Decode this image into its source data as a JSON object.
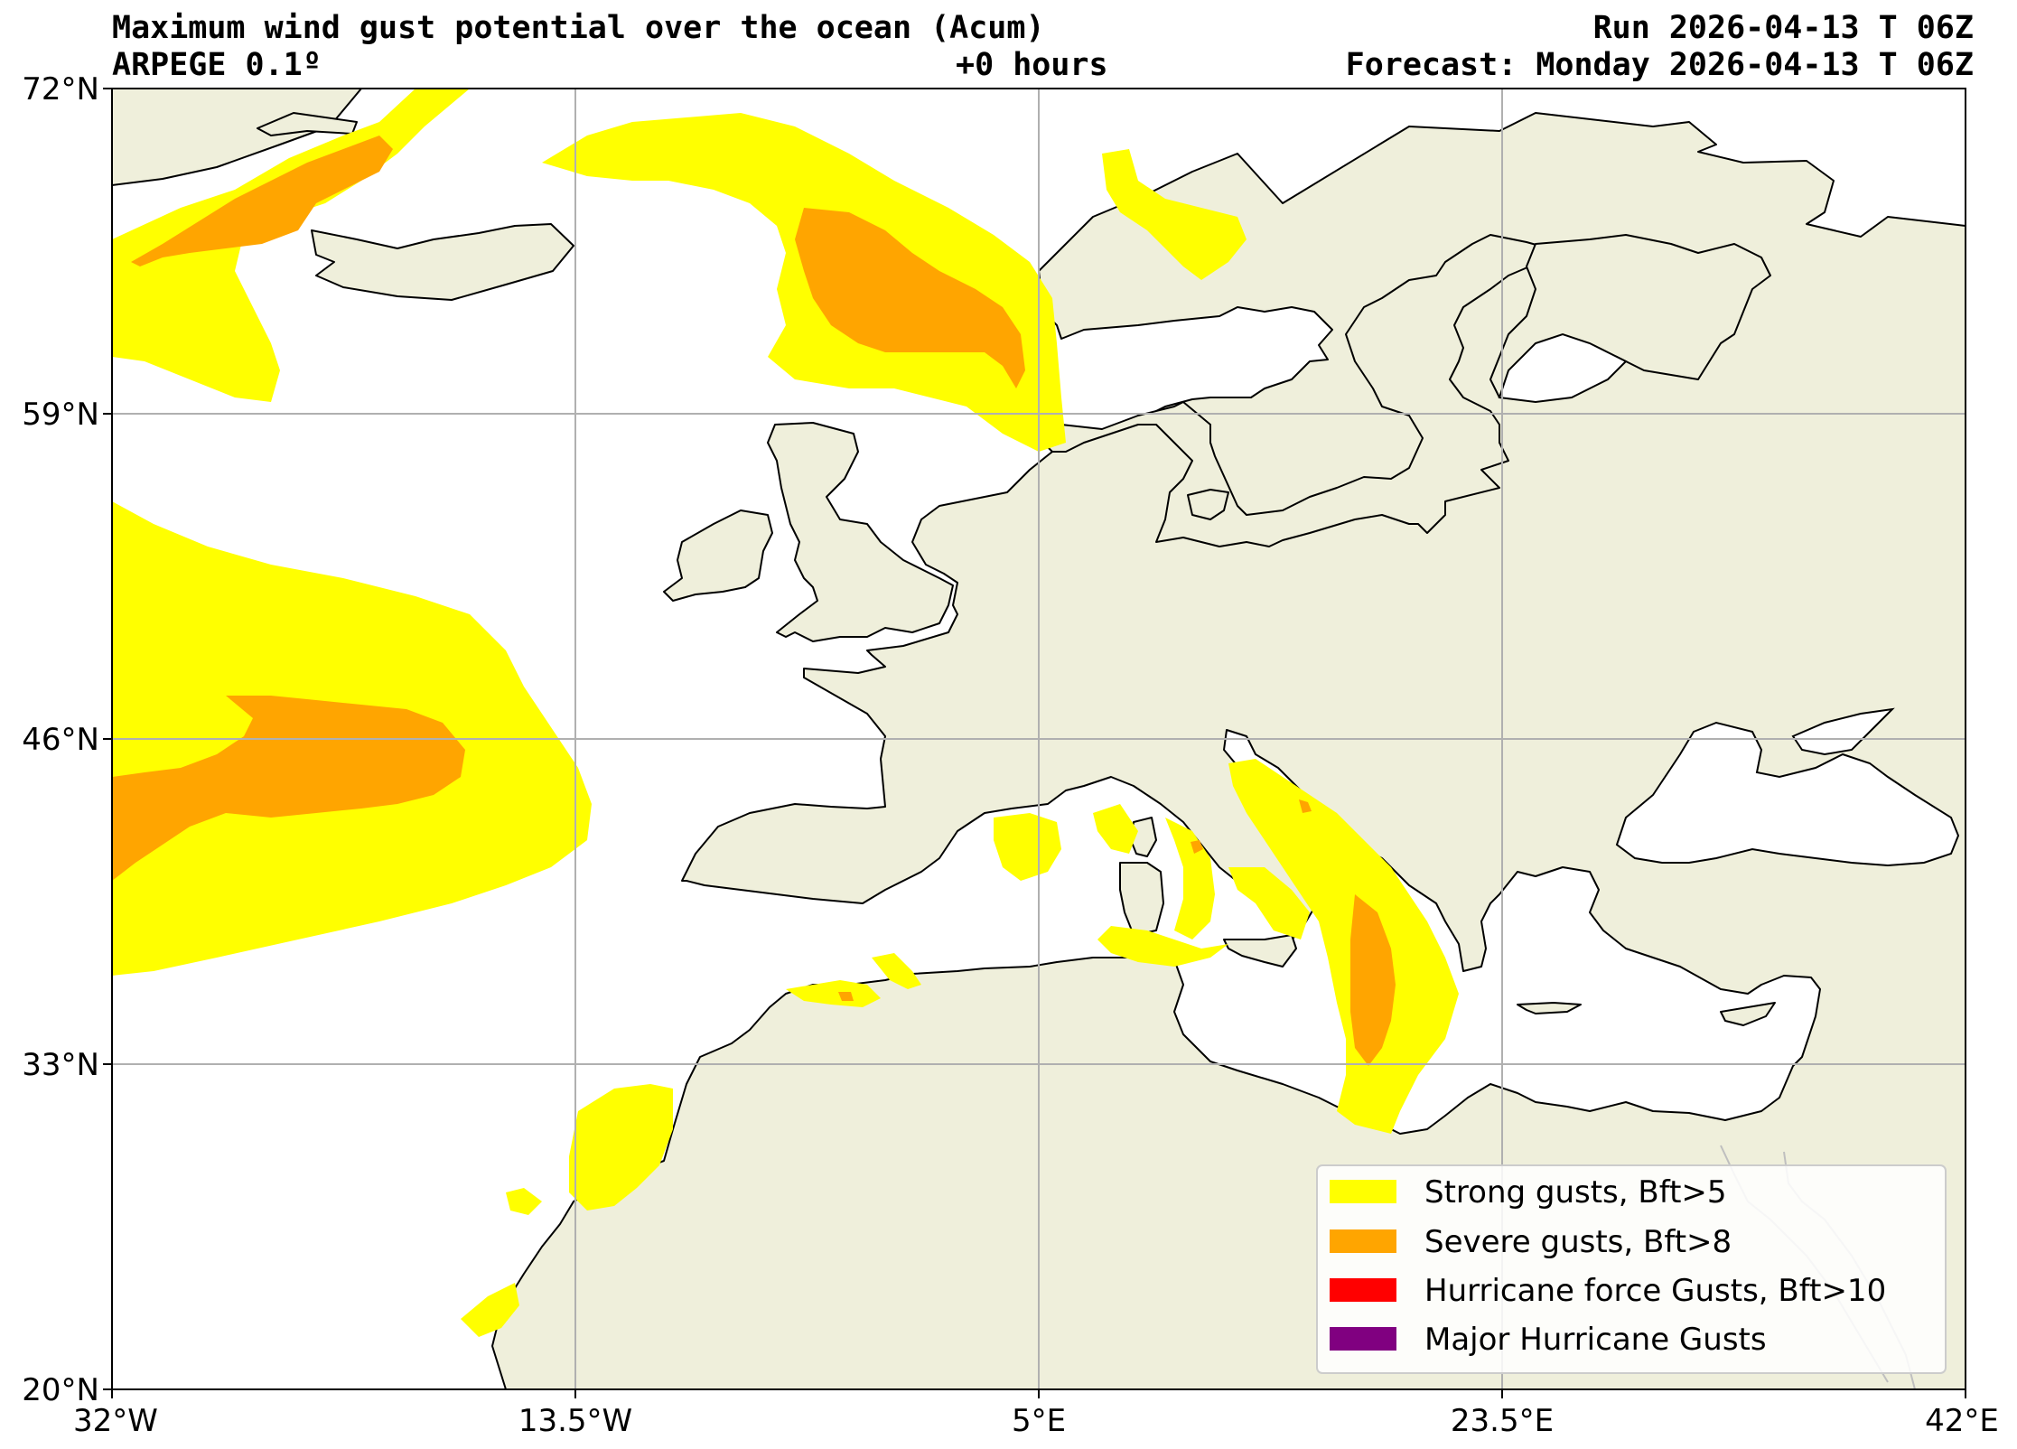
{
  "header": {
    "title": "Maximum wind gust potential over the ocean (Acum)",
    "model": "ARPEGE 0.1º",
    "lead_time": "+0 hours",
    "run": "Run 2026-04-13 T 06Z",
    "forecast": "Forecast: Monday 2026-04-13 T 06Z"
  },
  "axes": {
    "lat_ticks": [
      "72°N",
      "59°N",
      "46°N",
      "33°N",
      "20°N"
    ],
    "lon_ticks": [
      "32°W",
      "13.5°W",
      "5°E",
      "23.5°E",
      "42°E"
    ],
    "grid": true
  },
  "legend": {
    "placement": "bottom-right",
    "items": [
      {
        "label": "Strong gusts, Bft>5",
        "color": "#ffff00"
      },
      {
        "label": "Severe gusts, Bft>8",
        "color": "#ffa500"
      },
      {
        "label": "Hurricane force Gusts, Bft>10",
        "color": "#ff0000"
      },
      {
        "label": "Major Hurricane Gusts",
        "color": "#800080"
      }
    ]
  },
  "colors": {
    "land": "#efefdb",
    "ocean": "#ffffff",
    "grid": "#b0b0b0"
  }
}
